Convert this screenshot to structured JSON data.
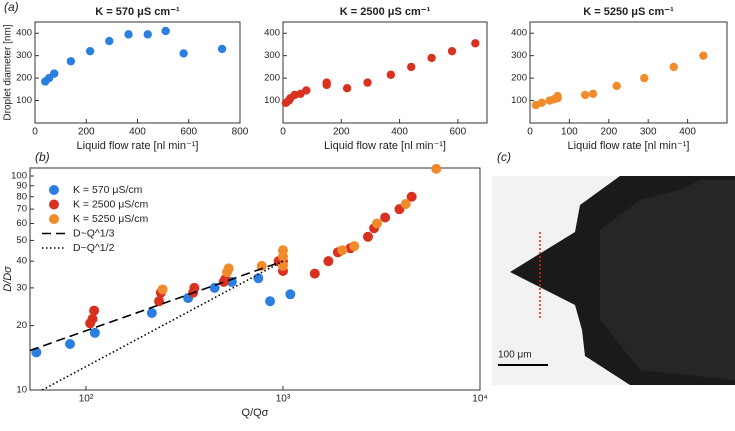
{
  "chart_data": [
    {
      "type": "scatter",
      "panel": "(a)",
      "title": "K = 570 μS cm⁻¹",
      "x_label": "Liquid flow rate [nl min⁻¹]",
      "y_label": "Droplet diameter [nm]",
      "xlim": [
        0,
        800
      ],
      "xticks": [
        0,
        200,
        400,
        600,
        800
      ],
      "ylim": [
        0,
        450
      ],
      "yticks": [
        100,
        200,
        300,
        400
      ],
      "series": [
        {
          "name": "K = 570 μS cm⁻¹",
          "color": "#2b7fe0",
          "x": [
            40,
            55,
            75,
            140,
            215,
            290,
            365,
            440,
            510,
            580,
            730
          ],
          "values": [
            185,
            200,
            220,
            275,
            320,
            365,
            395,
            395,
            410,
            310,
            330
          ]
        }
      ]
    },
    {
      "type": "scatter",
      "title": "K = 2500 μS cm⁻¹",
      "x_label": "Liquid flow rate [nl min⁻¹]",
      "xlim": [
        0,
        700
      ],
      "xticks": [
        0,
        200,
        400,
        600
      ],
      "ylim": [
        0,
        450
      ],
      "yticks": [
        100,
        200,
        300,
        400
      ],
      "series": [
        {
          "name": "K = 2500 μS cm⁻¹",
          "color": "#d93020",
          "x": [
            10,
            20,
            25,
            40,
            60,
            80,
            150,
            150,
            220,
            290,
            370,
            440,
            510,
            580,
            660
          ],
          "values": [
            90,
            100,
            110,
            125,
            130,
            145,
            170,
            180,
            155,
            180,
            215,
            250,
            290,
            320,
            355
          ]
        }
      ]
    },
    {
      "type": "scatter",
      "title": "K = 5250 μS cm⁻¹",
      "x_label": "Liquid flow rate [nl min⁻¹]",
      "xlim": [
        0,
        500
      ],
      "xticks": [
        0,
        100,
        200,
        300,
        400
      ],
      "ylim": [
        0,
        450
      ],
      "yticks": [
        100,
        200,
        300,
        400
      ],
      "series": [
        {
          "name": "K = 5250 μS cm⁻¹",
          "color": "#f08a2a",
          "x": [
            15,
            30,
            50,
            60,
            70,
            70,
            140,
            160,
            220,
            290,
            365,
            440
          ],
          "values": [
            80,
            90,
            100,
            105,
            110,
            120,
            125,
            130,
            165,
            200,
            250,
            300
          ]
        }
      ]
    },
    {
      "type": "scatter",
      "panel": "(b)",
      "x_label": "Q/Qσ",
      "y_label": "D/Dσ",
      "xscale": "log",
      "yscale": "log",
      "xlim": [
        52,
        10000
      ],
      "xticks": [
        {
          "value": 100,
          "label": "10²"
        },
        {
          "value": 1000,
          "label": "10³"
        },
        {
          "value": 10000,
          "label": "10⁴"
        }
      ],
      "ylim": [
        10,
        109
      ],
      "yticks": [
        10,
        20,
        30,
        40,
        50,
        60,
        70,
        80,
        90,
        100
      ],
      "series": [
        {
          "name": "K = 570 μS/cm",
          "color": "#2b7fe0",
          "x": [
            56,
            83,
            111,
            216,
            330,
            450,
            550,
            750,
            860,
            1090
          ],
          "values": [
            15,
            16.4,
            18.5,
            22.9,
            26.9,
            30,
            32,
            33.3,
            26,
            28
          ]
        },
        {
          "name": "K = 2500 μS/cm",
          "color": "#d93020",
          "x": [
            105,
            108,
            110,
            235,
            240,
            350,
            355,
            500,
            510,
            950,
            1000,
            1000,
            1450,
            1700,
            1900,
            2200,
            2700,
            2900,
            3300,
            3900,
            4500
          ],
          "values": [
            20.5,
            21.5,
            23.5,
            26,
            28.5,
            28.5,
            30,
            32,
            33,
            40,
            36,
            40,
            35,
            40,
            44,
            46,
            52,
            57,
            64,
            70,
            80
          ]
        },
        {
          "name": "K = 5250 μS/cm",
          "color": "#f08a2a",
          "x": [
            245,
            520,
            530,
            780,
            1000,
            1000,
            1000,
            2000,
            2300,
            3000,
            4200,
            6000
          ],
          "values": [
            29.5,
            35.5,
            37,
            38,
            38,
            42,
            45,
            45,
            47,
            60,
            74,
            108
          ]
        },
        {
          "name": "D~Q^1/3",
          "kind": "line",
          "dash": "dashed",
          "color": "#000000",
          "x": [
            52,
            1000
          ],
          "values": [
            15.3,
            40
          ]
        },
        {
          "name": "D~Q^1/2",
          "kind": "line",
          "dash": "dotted",
          "color": "#000000",
          "x": [
            60,
            1000
          ],
          "values": [
            10,
            40
          ]
        }
      ],
      "legend": "upper left"
    }
  ],
  "image": {
    "panel": "(c)",
    "scale_bar": "100 μm"
  }
}
